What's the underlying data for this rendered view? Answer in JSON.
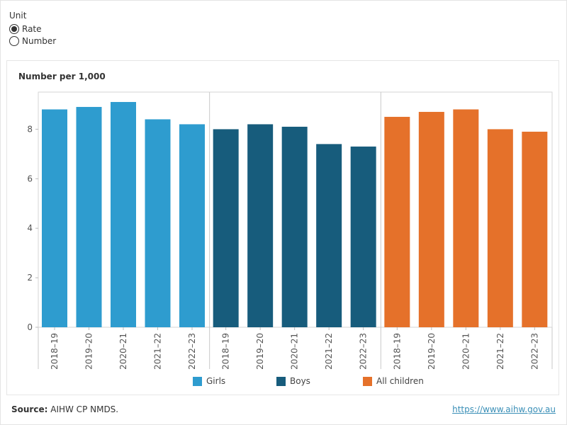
{
  "unit_selector": {
    "title": "Unit",
    "options": [
      {
        "label": "Rate",
        "selected": true
      },
      {
        "label": "Number",
        "selected": false
      }
    ]
  },
  "footer": {
    "source_label": "Source:",
    "source_text": "AIHW CP NMDS.",
    "link": "https://www.aihw.gov.au"
  },
  "chart_data": {
    "type": "bar",
    "title": "",
    "ylabel": "Number per 1,000",
    "xlabel": "",
    "ylim": [
      0,
      9.5
    ],
    "yticks": [
      0,
      2,
      4,
      6,
      8
    ],
    "categories": [
      "2018–19",
      "2019–20",
      "2020–21",
      "2021–22",
      "2022–23"
    ],
    "series": [
      {
        "name": "Girls",
        "color": "#2e9ccf",
        "values": [
          8.8,
          8.9,
          9.1,
          8.4,
          8.2
        ]
      },
      {
        "name": "Boys",
        "color": "#175c7c",
        "values": [
          8.0,
          8.2,
          8.1,
          7.4,
          7.3
        ]
      },
      {
        "name": "All children",
        "color": "#e5712a",
        "values": [
          8.5,
          8.7,
          8.8,
          8.0,
          7.9
        ]
      }
    ],
    "grid": false,
    "legend": "bottom"
  }
}
